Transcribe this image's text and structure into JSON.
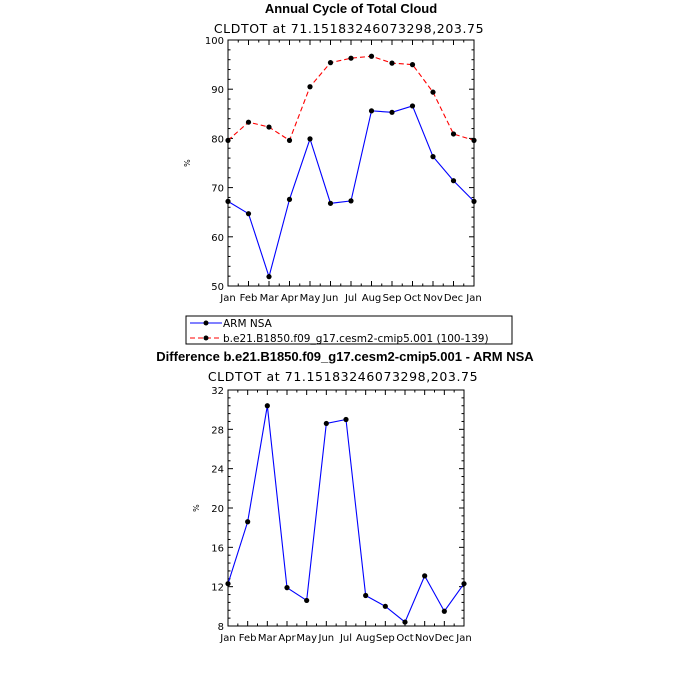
{
  "chart_data": [
    {
      "type": "line",
      "title": "Annual Cycle of Total Cloud",
      "subtitle": "CLDTOT at 71.15183246073298,203.75",
      "ylabel": "%",
      "xlabel": "",
      "categories": [
        "Jan",
        "Feb",
        "Mar",
        "Apr",
        "May",
        "Jun",
        "Jul",
        "Aug",
        "Sep",
        "Oct",
        "Nov",
        "Dec",
        "Jan"
      ],
      "ylim": [
        50,
        100
      ],
      "yticks": [
        50,
        60,
        70,
        80,
        90,
        100
      ],
      "ytick_labels": [
        "50",
        "60",
        "70",
        "80",
        "90",
        "100"
      ],
      "grid": false,
      "series": [
        {
          "name": "ARM NSA",
          "color": "#0000ff",
          "dash": "solid",
          "values": [
            67.2,
            64.7,
            51.9,
            67.6,
            79.9,
            66.8,
            67.3,
            85.6,
            85.3,
            86.6,
            76.3,
            71.4,
            67.2
          ]
        },
        {
          "name": "b.e21.B1850.f09_g17.cesm2-cmip5.001 (100-139)",
          "color": "#ff0000",
          "dash": "dashed",
          "values": [
            79.6,
            83.3,
            82.3,
            79.6,
            90.5,
            95.4,
            96.3,
            96.7,
            95.3,
            95.0,
            89.4,
            80.9,
            79.6
          ]
        }
      ],
      "legend": {
        "position": "below",
        "entries": [
          "ARM NSA",
          "b.e21.B1850.f09_g17.cesm2-cmip5.001 (100-139)"
        ]
      }
    },
    {
      "type": "line",
      "title": "Difference b.e21.B1850.f09_g17.cesm2-cmip5.001 - ARM NSA",
      "subtitle": "CLDTOT at 71.15183246073298,203.75",
      "ylabel": "%",
      "xlabel": "",
      "categories": [
        "Jan",
        "Feb",
        "Mar",
        "Apr",
        "May",
        "Jun",
        "Jul",
        "Aug",
        "Sep",
        "Oct",
        "Nov",
        "Dec",
        "Jan"
      ],
      "ylim": [
        8,
        32
      ],
      "yticks": [
        8,
        12,
        16,
        20,
        24,
        28,
        32
      ],
      "ytick_labels": [
        "8",
        "12",
        "16",
        "20",
        "24",
        "28",
        "32"
      ],
      "grid": false,
      "series": [
        {
          "color": "#0000ff",
          "dash": "solid",
          "values": [
            12.3,
            18.6,
            30.4,
            11.9,
            10.6,
            28.6,
            29.0,
            11.1,
            10.0,
            8.4,
            13.1,
            9.5,
            12.3
          ]
        }
      ]
    }
  ]
}
